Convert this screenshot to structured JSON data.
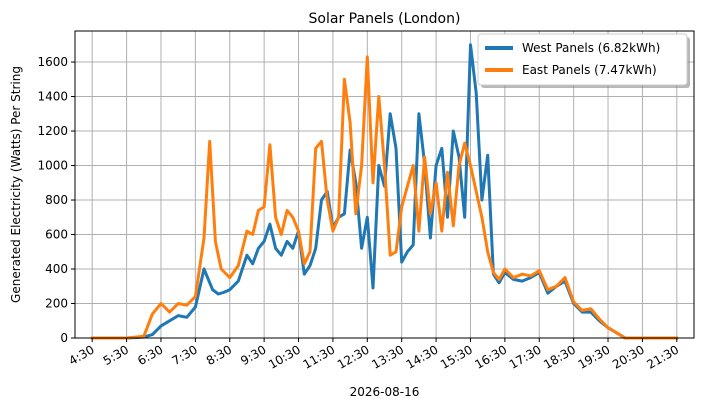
{
  "chart_data": {
    "type": "line",
    "title": "Solar Panels (London)",
    "xlabel": "2026-08-16",
    "ylabel": "Generated Electricity (Watts) Per String",
    "ylim": [
      0,
      1780
    ],
    "yticks": [
      0,
      200,
      400,
      600,
      800,
      1000,
      1200,
      1400,
      1600
    ],
    "xticks": [
      "4:30",
      "5:30",
      "6:30",
      "7:30",
      "8:30",
      "9:30",
      "10:30",
      "11:30",
      "12:30",
      "13:30",
      "14:30",
      "15:30",
      "16:30",
      "17:30",
      "18:30",
      "19:30",
      "20:30",
      "21:30"
    ],
    "grid": true,
    "legend_position": "top-right",
    "series": [
      {
        "name": "West Panels (6.82kWh)",
        "color": "#1f77b4",
        "x": [
          "4:30",
          "5:00",
          "5:30",
          "6:00",
          "6:15",
          "6:30",
          "6:45",
          "7:00",
          "7:15",
          "7:30",
          "7:45",
          "8:00",
          "8:10",
          "8:20",
          "8:30",
          "8:45",
          "9:00",
          "9:10",
          "9:20",
          "9:30",
          "9:40",
          "9:50",
          "10:00",
          "10:10",
          "10:20",
          "10:30",
          "10:40",
          "10:50",
          "11:00",
          "11:10",
          "11:20",
          "11:30",
          "11:40",
          "11:50",
          "12:00",
          "12:10",
          "12:20",
          "12:30",
          "12:40",
          "12:50",
          "13:00",
          "13:10",
          "13:20",
          "13:30",
          "13:40",
          "13:50",
          "14:00",
          "14:10",
          "14:20",
          "14:30",
          "14:40",
          "14:50",
          "15:00",
          "15:10",
          "15:20",
          "15:30",
          "15:40",
          "15:50",
          "16:00",
          "16:10",
          "16:20",
          "16:30",
          "16:45",
          "17:00",
          "17:15",
          "17:30",
          "17:45",
          "18:00",
          "18:15",
          "18:30",
          "18:45",
          "19:00",
          "19:15",
          "19:30",
          "19:45",
          "20:00",
          "20:30",
          "21:00",
          "21:30"
        ],
        "values": [
          0,
          0,
          0,
          5,
          20,
          70,
          100,
          130,
          120,
          180,
          400,
          280,
          255,
          265,
          280,
          330,
          480,
          430,
          520,
          560,
          660,
          520,
          480,
          560,
          520,
          620,
          370,
          420,
          520,
          800,
          850,
          640,
          700,
          720,
          1090,
          900,
          520,
          700,
          290,
          1000,
          880,
          1300,
          1100,
          440,
          500,
          540,
          1300,
          1010,
          580,
          1000,
          1100,
          700,
          1200,
          1050,
          700,
          1700,
          1420,
          800,
          1060,
          370,
          320,
          380,
          340,
          330,
          350,
          380,
          260,
          300,
          330,
          200,
          150,
          150,
          100,
          60,
          30,
          0,
          0,
          0,
          0
        ]
      },
      {
        "name": "East Panels (7.47kWh)",
        "color": "#ff7f0e",
        "x": [
          "4:30",
          "5:00",
          "5:30",
          "6:00",
          "6:15",
          "6:30",
          "6:45",
          "7:00",
          "7:15",
          "7:30",
          "7:45",
          "7:55",
          "8:05",
          "8:15",
          "8:30",
          "8:45",
          "9:00",
          "9:10",
          "9:20",
          "9:30",
          "9:40",
          "9:50",
          "10:00",
          "10:10",
          "10:20",
          "10:30",
          "10:40",
          "10:50",
          "11:00",
          "11:10",
          "11:20",
          "11:30",
          "11:40",
          "11:50",
          "12:00",
          "12:10",
          "12:20",
          "12:30",
          "12:40",
          "12:50",
          "13:00",
          "13:10",
          "13:20",
          "13:30",
          "13:40",
          "13:50",
          "14:00",
          "14:10",
          "14:20",
          "14:30",
          "14:40",
          "14:50",
          "15:00",
          "15:10",
          "15:20",
          "15:30",
          "15:40",
          "15:50",
          "16:00",
          "16:10",
          "16:20",
          "16:30",
          "16:45",
          "17:00",
          "17:15",
          "17:30",
          "17:45",
          "18:00",
          "18:15",
          "18:30",
          "18:45",
          "19:00",
          "19:15",
          "19:30",
          "19:45",
          "20:00",
          "20:30",
          "21:00",
          "21:30"
        ],
        "values": [
          0,
          0,
          0,
          10,
          140,
          200,
          150,
          200,
          190,
          240,
          580,
          1140,
          560,
          400,
          350,
          420,
          620,
          600,
          740,
          760,
          1120,
          700,
          600,
          740,
          700,
          620,
          430,
          500,
          1100,
          1140,
          800,
          620,
          700,
          1500,
          1250,
          720,
          1000,
          1630,
          900,
          1400,
          1000,
          480,
          500,
          760,
          880,
          1000,
          620,
          1050,
          720,
          900,
          620,
          960,
          650,
          1000,
          1130,
          1000,
          850,
          700,
          500,
          380,
          340,
          400,
          350,
          370,
          360,
          390,
          280,
          300,
          350,
          210,
          160,
          170,
          110,
          60,
          30,
          0,
          0,
          0,
          0
        ]
      }
    ]
  }
}
